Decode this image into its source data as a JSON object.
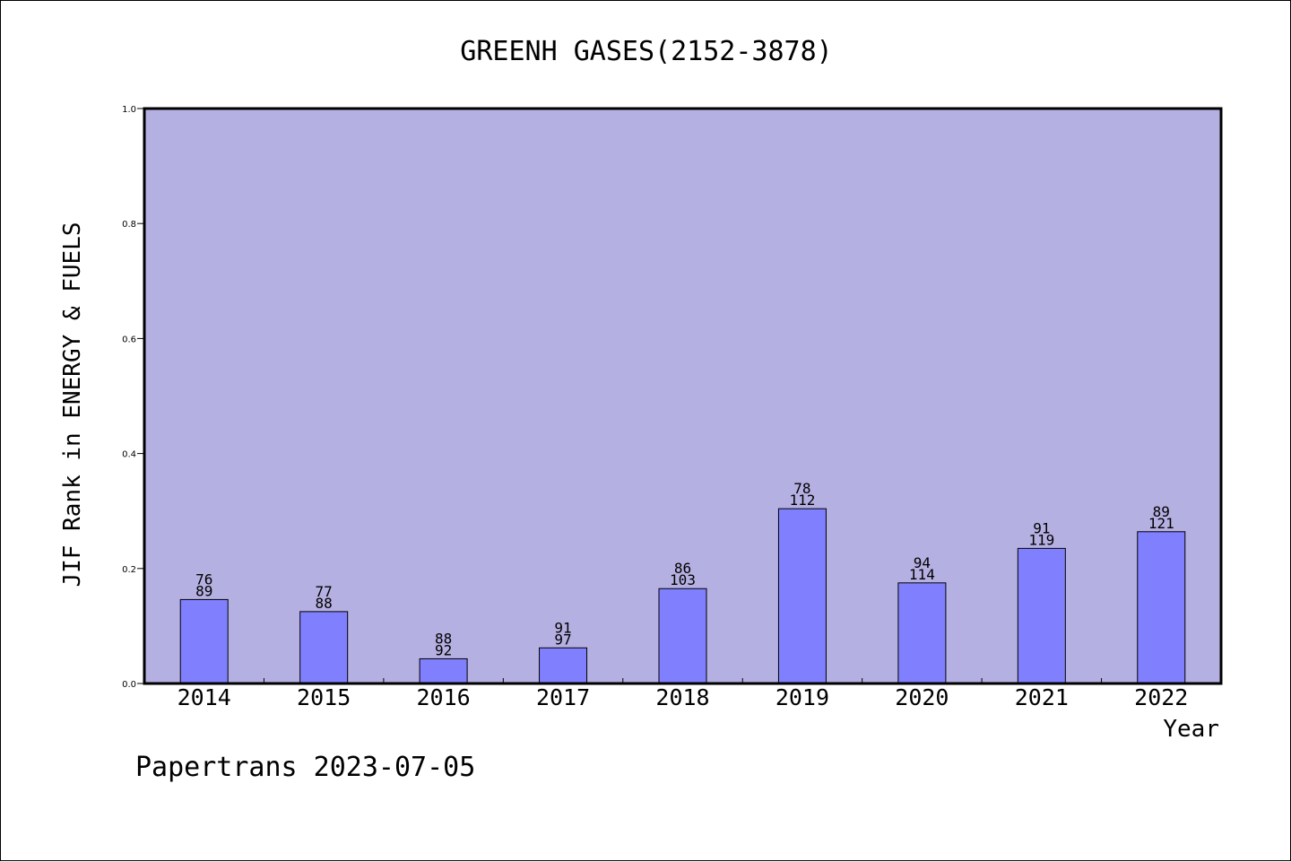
{
  "chart_data": {
    "type": "bar",
    "title": "GREENH GASES(2152-3878)",
    "xlabel": "Year",
    "ylabel": "JIF Rank in ENERGY & FUELS",
    "ylim": [
      0,
      1.0
    ],
    "yticks": [
      "0.0",
      "0.2",
      "0.4",
      "0.6",
      "0.8",
      "1.0"
    ],
    "categories": [
      "2014",
      "2015",
      "2016",
      "2017",
      "2018",
      "2019",
      "2020",
      "2021",
      "2022"
    ],
    "values": [
      0.146,
      0.125,
      0.043,
      0.062,
      0.165,
      0.304,
      0.175,
      0.235,
      0.264
    ],
    "label_top": [
      "76",
      "77",
      "88",
      "91",
      "86",
      "78",
      "94",
      "91",
      "89"
    ],
    "label_bottom": [
      "89",
      "88",
      "92",
      "97",
      "103",
      "112",
      "114",
      "119",
      "121"
    ],
    "grid": false,
    "colors": {
      "plot_background": "#b5b0e2",
      "bar_fill": "#8080ff",
      "bar_stroke": "#000000"
    }
  },
  "footer": {
    "text": "Papertrans 2023-07-05"
  }
}
